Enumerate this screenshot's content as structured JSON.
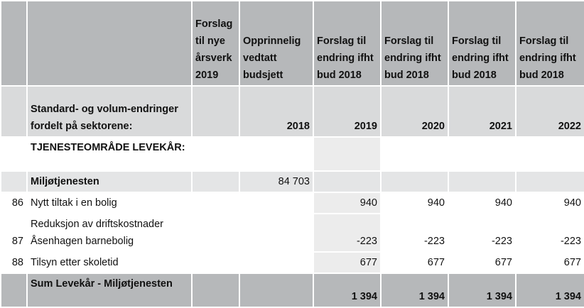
{
  "table": {
    "header": [
      "",
      "",
      "Forslag til nye årsverk 2019",
      "Opprinnelig vedtatt budsjett",
      "Forslag til endring ifht bud 2018",
      "Forslag til endring ifht bud 2018",
      "Forslag til endring ifht bud 2018",
      "Forslag til endring ifht bud 2018"
    ],
    "rows": [
      [
        "",
        "Standard- og volum-endringer fordelt på sektorene:",
        "",
        "2018",
        "2019",
        "2020",
        "2021",
        "2022"
      ],
      [
        "",
        "TJENESTEOMRÅDE LEVEKÅR:",
        "",
        "",
        "",
        "",
        "",
        ""
      ],
      [
        "",
        "Miljøtjenesten",
        "",
        "84 703",
        "",
        "",
        "",
        ""
      ],
      [
        "86",
        "Nytt tiltak i en bolig",
        "",
        "",
        "940",
        "940",
        "940",
        "940"
      ],
      [
        "87",
        "Reduksjon av driftskostnader Åsenhagen barnebolig",
        "",
        "",
        "-223",
        "-223",
        "-223",
        "-223"
      ],
      [
        "88",
        "Tilsyn etter skoletid",
        "",
        "",
        "677",
        "677",
        "677",
        "677"
      ],
      [
        "",
        "Sum Levekår - Miljøtjenesten",
        "",
        "",
        "1 394",
        "1 394",
        "1 394",
        "1 394"
      ]
    ]
  }
}
